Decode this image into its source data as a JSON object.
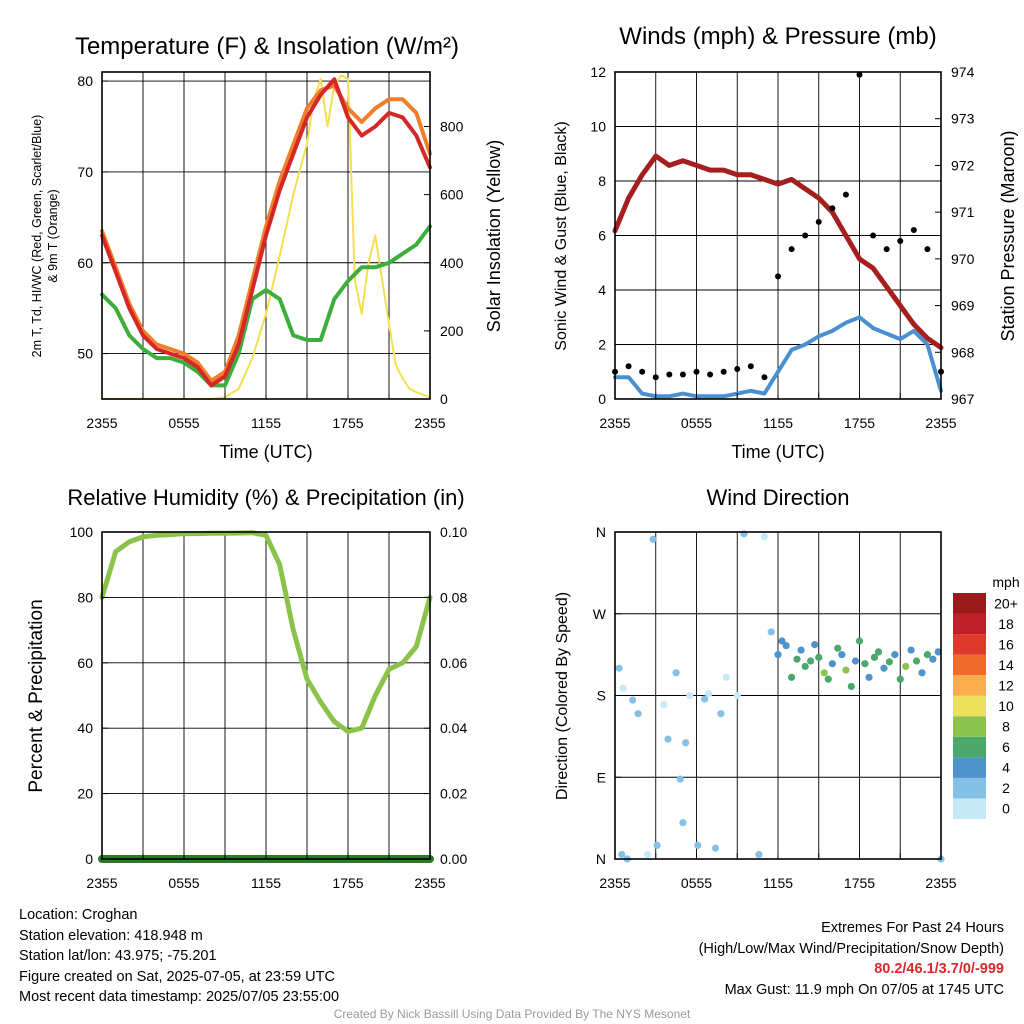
{
  "panels": {
    "temperature": {
      "title": "Temperature (F) & Insolation (W/m²)",
      "ylabel_left_line1": "2m T, Td, HI/WC (Red, Green, Scarlet/Blue)",
      "ylabel_left_line2": "& 9m T (Orange)",
      "ylabel_right": "Solar Insolation (Yellow)",
      "xlabel": "Time (UTC)"
    },
    "winds": {
      "title": "Winds (mph) & Pressure (mb)",
      "ylabel_left": "Sonic Wind & Gust (Blue, Black)",
      "ylabel_right": "Station Pressure (Maroon)",
      "xlabel": "Time (UTC)"
    },
    "humidity": {
      "title": "Relative Humidity (%) & Precipitation (in)",
      "ylabel_left": "Percent & Precipitation"
    },
    "direction": {
      "title": "Wind Direction",
      "ylabel_left": "Direction (Colored By Speed)",
      "colorbar_unit": "mph"
    }
  },
  "info": {
    "location": "Location: Croghan",
    "elevation": "Station elevation: 418.948 m",
    "latlon": "Station lat/lon: 43.975; -75.201",
    "created": "Figure created on Sat, 2025-07-05, at 23:59 UTC",
    "recent": "Most recent data timestamp: 2025/07/05 23:55:00"
  },
  "extremes": {
    "title": "Extremes For Past 24 Hours",
    "subtitle": "(High/Low/Max Wind/Precipitation/Snow Depth)",
    "values": "80.2/46.1/3.7/0/-999",
    "gust": "Max Gust: 11.9 mph On 07/05 at 1745 UTC"
  },
  "credit": "Created By Nick Bassill Using Data Provided By The NYS Mesonet",
  "chart_data": [
    {
      "type": "line",
      "title": "Temperature (F) & Insolation (W/m²)",
      "xlabel": "Time (UTC)",
      "x_ticks": [
        "2355",
        "0555",
        "1155",
        "1755",
        "2355"
      ],
      "xlim_hours": [
        0,
        24
      ],
      "ylim_left": [
        45,
        81
      ],
      "y_ticks_left": [
        50,
        60,
        70,
        80
      ],
      "ylim_right": [
        0,
        960
      ],
      "y_ticks_right": [
        0,
        200,
        400,
        600,
        800
      ],
      "series": [
        {
          "name": "2m T",
          "color": "#d62728",
          "axis": "left",
          "x": [
            0,
            1,
            2,
            3,
            4,
            5,
            6,
            7,
            8,
            9,
            10,
            11,
            12,
            13,
            14,
            15,
            16,
            17,
            18,
            19,
            20,
            21,
            22,
            23,
            24
          ],
          "values": [
            63,
            59,
            55,
            52,
            50.5,
            50,
            49.5,
            48.5,
            46.5,
            47.5,
            51,
            57,
            63,
            68,
            72,
            76,
            78.5,
            80.2,
            76,
            74,
            75,
            76.5,
            76,
            74,
            70.5
          ]
        },
        {
          "name": "9m T",
          "color": "#f07f2a",
          "axis": "left",
          "x": [
            0,
            1,
            2,
            3,
            4,
            5,
            6,
            7,
            8,
            9,
            10,
            11,
            12,
            13,
            14,
            15,
            16,
            17,
            18,
            19,
            20,
            21,
            22,
            23,
            24
          ],
          "values": [
            63.5,
            59.5,
            55.5,
            52.5,
            51,
            50.5,
            50,
            49,
            47,
            48,
            52,
            58,
            64,
            69,
            73,
            77,
            79,
            79.5,
            77,
            75.5,
            77,
            78,
            78,
            76.5,
            72
          ]
        },
        {
          "name": "Td",
          "color": "#3cae3c",
          "axis": "left",
          "x": [
            0,
            1,
            2,
            3,
            4,
            5,
            6,
            7,
            8,
            9,
            10,
            11,
            12,
            13,
            14,
            15,
            16,
            17,
            18,
            19,
            20,
            21,
            22,
            23,
            24
          ],
          "values": [
            56.5,
            55,
            52,
            50.5,
            49.5,
            49.5,
            49,
            48,
            46.5,
            46.5,
            50,
            56,
            57,
            56,
            52,
            51.5,
            51.5,
            56,
            58,
            59.5,
            59.5,
            60,
            61,
            62,
            64
          ]
        },
        {
          "name": "Solar Insolation",
          "color": "#f5df50",
          "axis": "right",
          "x": [
            0,
            1,
            2,
            3,
            4,
            5,
            6,
            7,
            8,
            9,
            10,
            11,
            12,
            13,
            14,
            15,
            15.5,
            16,
            16.5,
            17,
            17.5,
            18,
            18.5,
            19,
            19.5,
            20,
            20.5,
            21,
            21.5,
            22,
            22.5,
            23,
            24
          ],
          "values": [
            0,
            0,
            0,
            0,
            0,
            0,
            0,
            0,
            0,
            5,
            30,
            120,
            250,
            420,
            600,
            750,
            880,
            940,
            800,
            920,
            950,
            940,
            350,
            250,
            400,
            480,
            350,
            220,
            100,
            60,
            30,
            20,
            5
          ]
        }
      ]
    },
    {
      "type": "line",
      "title": "Winds (mph) & Pressure (mb)",
      "xlabel": "Time (UTC)",
      "x_ticks": [
        "2355",
        "0555",
        "1155",
        "1755",
        "2355"
      ],
      "xlim_hours": [
        0,
        24
      ],
      "ylim_left": [
        0,
        12
      ],
      "y_ticks_left": [
        0,
        2,
        4,
        6,
        8,
        10,
        12
      ],
      "ylim_right": [
        967,
        974
      ],
      "y_ticks_right": [
        967,
        968,
        969,
        970,
        971,
        972,
        973,
        974
      ],
      "series": [
        {
          "name": "Station Pressure",
          "color": "#a51f1f",
          "axis": "right",
          "x": [
            0,
            1,
            2,
            3,
            4,
            5,
            6,
            7,
            8,
            9,
            10,
            11,
            12,
            13,
            14,
            15,
            16,
            17,
            18,
            19,
            20,
            21,
            22,
            23,
            24
          ],
          "values": [
            970.6,
            971.3,
            971.8,
            972.2,
            972.0,
            972.1,
            972.0,
            971.9,
            971.9,
            971.8,
            971.8,
            971.7,
            971.6,
            971.7,
            971.5,
            971.3,
            971.0,
            970.5,
            970.0,
            969.8,
            969.4,
            969.0,
            968.6,
            968.3,
            968.1
          ]
        },
        {
          "name": "Sonic Wind",
          "color": "#4a90d0",
          "axis": "left",
          "x": [
            0,
            1,
            2,
            3,
            4,
            5,
            6,
            7,
            8,
            9,
            10,
            11,
            12,
            13,
            14,
            15,
            16,
            17,
            18,
            19,
            20,
            21,
            22,
            23,
            24
          ],
          "values": [
            0.8,
            0.8,
            0.2,
            0.1,
            0.1,
            0.2,
            0.1,
            0.1,
            0.1,
            0.2,
            0.3,
            0.2,
            1.0,
            1.8,
            2.0,
            2.3,
            2.5,
            2.8,
            3.0,
            2.6,
            2.4,
            2.2,
            2.5,
            2.0,
            0.3
          ]
        },
        {
          "name": "Gust",
          "color": "#000000",
          "axis": "left",
          "x": [
            0,
            1,
            2,
            3,
            4,
            5,
            6,
            7,
            8,
            9,
            10,
            11,
            12,
            13,
            14,
            15,
            16,
            17,
            18,
            19,
            20,
            21,
            22,
            23,
            24
          ],
          "values": [
            1.0,
            1.2,
            1.0,
            0.8,
            0.9,
            0.9,
            1.0,
            0.9,
            1.0,
            1.1,
            1.2,
            0.8,
            4.5,
            5.5,
            6.0,
            6.5,
            7.0,
            7.5,
            11.9,
            6.0,
            5.5,
            5.8,
            6.2,
            5.5,
            1.0
          ]
        }
      ]
    },
    {
      "type": "line",
      "title": "Relative Humidity (%) & Precipitation (in)",
      "x_ticks": [
        "2355",
        "0555",
        "1155",
        "1755",
        "2355"
      ],
      "xlim_hours": [
        0,
        24
      ],
      "ylim_left": [
        0,
        100
      ],
      "y_ticks_left": [
        0,
        20,
        40,
        60,
        80,
        100
      ],
      "ylim_right": [
        0,
        0.1
      ],
      "y_ticks_right": [
        "0.00",
        "0.02",
        "0.04",
        "0.06",
        "0.08",
        "0.10"
      ],
      "series": [
        {
          "name": "Relative Humidity",
          "color": "#8bc34a",
          "axis": "left",
          "x": [
            0,
            1,
            2,
            3,
            4,
            5,
            6,
            7,
            8,
            9,
            10,
            11,
            12,
            13,
            14,
            15,
            16,
            17,
            18,
            19,
            20,
            21,
            22,
            23,
            24
          ],
          "values": [
            80,
            94,
            97,
            98.5,
            99,
            99.2,
            99.5,
            99.5,
            99.6,
            99.6,
            99.7,
            99.8,
            99,
            90,
            70,
            55,
            48,
            42,
            39,
            40,
            50,
            58,
            60,
            65,
            80
          ]
        },
        {
          "name": "Precipitation",
          "color": "#2a7a2a",
          "axis": "right",
          "x": [
            0,
            24
          ],
          "values": [
            0,
            0
          ]
        }
      ]
    },
    {
      "type": "scatter",
      "title": "Wind Direction",
      "ylabel": "Direction (Colored By Speed)",
      "x_ticks": [
        "2355",
        "0555",
        "1155",
        "1755",
        "2355"
      ],
      "xlim_hours": [
        0,
        24
      ],
      "y_ticks": [
        "N",
        "E",
        "S",
        "W",
        "N"
      ],
      "ylim_degrees": [
        0,
        360
      ],
      "colorbar": {
        "unit": "mph",
        "labels": [
          "0",
          "2",
          "4",
          "6",
          "8",
          "10",
          "12",
          "14",
          "16",
          "18",
          "20+"
        ],
        "colors": [
          "#c6e9f7",
          "#85c0e6",
          "#4e93cb",
          "#4aa86a",
          "#8cc34f",
          "#ece05a",
          "#f9ad4c",
          "#f06a2c",
          "#e03a2c",
          "#c0202a",
          "#9b1a1a"
        ]
      },
      "x": [
        0.3,
        0.5,
        0.6,
        0.9,
        1.3,
        1.7,
        2.4,
        2.8,
        3.1,
        3.6,
        3.9,
        4.5,
        4.8,
        5.0,
        5.2,
        5.5,
        6.1,
        6.6,
        6.9,
        7.4,
        7.8,
        8.2,
        9.0,
        9.5,
        10.6,
        11.0,
        11.5,
        12.0,
        12.3,
        12.6,
        13.0,
        13.4,
        13.7,
        14.0,
        14.4,
        14.7,
        15.0,
        15.4,
        15.7,
        16.0,
        16.4,
        16.7,
        17.0,
        17.4,
        17.7,
        18.0,
        18.4,
        18.7,
        19.1,
        19.4,
        19.8,
        20.2,
        20.6,
        21.0,
        21.4,
        21.8,
        22.2,
        22.6,
        23.0,
        23.4,
        23.8,
        24.0
      ],
      "values": [
        210,
        5,
        188,
        0,
        175,
        160,
        5,
        352,
        15,
        170,
        132,
        205,
        88,
        40,
        128,
        180,
        15,
        176,
        182,
        12,
        160,
        200,
        180,
        358,
        5,
        355,
        250,
        225,
        240,
        235,
        200,
        220,
        230,
        212,
        218,
        236,
        222,
        205,
        198,
        215,
        232,
        225,
        208,
        190,
        218,
        240,
        215,
        200,
        222,
        228,
        210,
        217,
        225,
        198,
        212,
        230,
        218,
        205,
        225,
        220,
        228,
        0
      ],
      "speeds": [
        1,
        1,
        0,
        1,
        1,
        1,
        0,
        1,
        1,
        0,
        1,
        1,
        1,
        1,
        1,
        0,
        1,
        1,
        0,
        1,
        1,
        0,
        0,
        1,
        1,
        0,
        1,
        2,
        2,
        2,
        3,
        3,
        2,
        3,
        3,
        2,
        3,
        4,
        3,
        2,
        3,
        2,
        4,
        3,
        2,
        3,
        3,
        2,
        3,
        3,
        2,
        3,
        2,
        3,
        4,
        2,
        3,
        2,
        3,
        2,
        2,
        1
      ]
    }
  ]
}
